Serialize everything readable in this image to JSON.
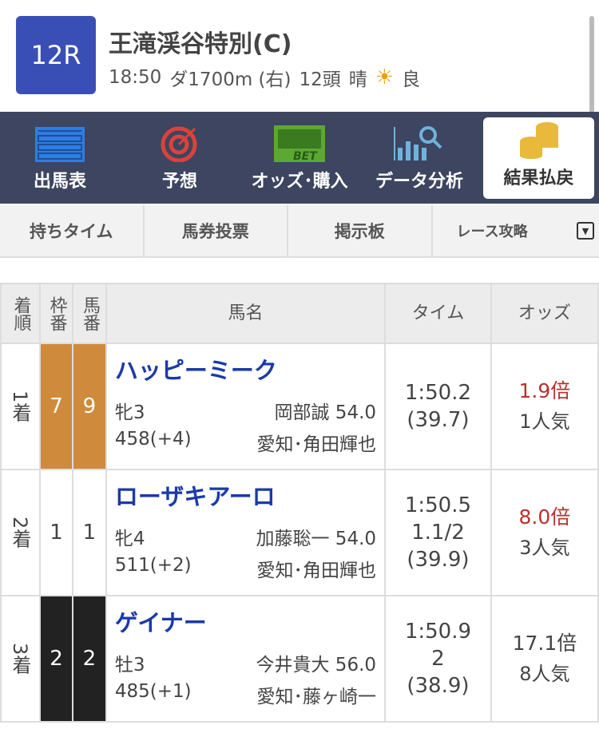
{
  "race": {
    "number": "12R",
    "title": "王滝渓谷特別(C)",
    "time": "18:50",
    "course": "ダ1700m (右)",
    "heads": "12頭",
    "weather": "晴",
    "weather_icon": "sun-icon",
    "track": "良"
  },
  "nav": [
    {
      "label": "出馬表",
      "icon": "race-card-icon"
    },
    {
      "label": "予想",
      "icon": "target-icon"
    },
    {
      "label": "オッズ･購入",
      "icon": "bet-icon"
    },
    {
      "label": "データ分析",
      "icon": "chart-search-icon"
    },
    {
      "label": "結果払戻",
      "icon": "coins-icon",
      "active": true
    }
  ],
  "tabs": [
    "持ちタイム",
    "馬券投票",
    "掲示板",
    "レース攻略"
  ],
  "table": {
    "headers": {
      "rank": "着順",
      "frame": "枠番",
      "num": "馬番",
      "name": "馬名",
      "time": "タイム",
      "odds": "オッズ"
    },
    "rows": [
      {
        "rank": "1着",
        "frame": "7",
        "frame_color": "#d08a3c",
        "num": "9",
        "name": "ハッピーミーク",
        "sexage": "牝3",
        "jockey": "岡部誠 54.0",
        "weight": "458(+4)",
        "trainer": "愛知･角田輝也",
        "time": "1:50.2",
        "margin": "",
        "last3f": "(39.7)",
        "odds": "1.9倍",
        "odds_highlight": true,
        "pop": "1人気"
      },
      {
        "rank": "2着",
        "frame": "1",
        "frame_color": "#ffffff",
        "num": "1",
        "name": "ローザキアーロ",
        "sexage": "牝4",
        "jockey": "加藤聡一 54.0",
        "weight": "511(+2)",
        "trainer": "愛知･角田輝也",
        "time": "1:50.5",
        "margin": "1.1/2",
        "last3f": "(39.9)",
        "odds": "8.0倍",
        "odds_highlight": true,
        "pop": "3人気"
      },
      {
        "rank": "3着",
        "frame": "2",
        "frame_color": "#222222",
        "num": "2",
        "name": "ゲイナー",
        "sexage": "牡3",
        "jockey": "今井貴大 56.0",
        "weight": "485(+1)",
        "trainer": "愛知･藤ヶ崎一",
        "time": "1:50.9",
        "margin": "2",
        "last3f": "(38.9)",
        "odds": "17.1倍",
        "odds_highlight": false,
        "pop": "8人気"
      }
    ]
  }
}
